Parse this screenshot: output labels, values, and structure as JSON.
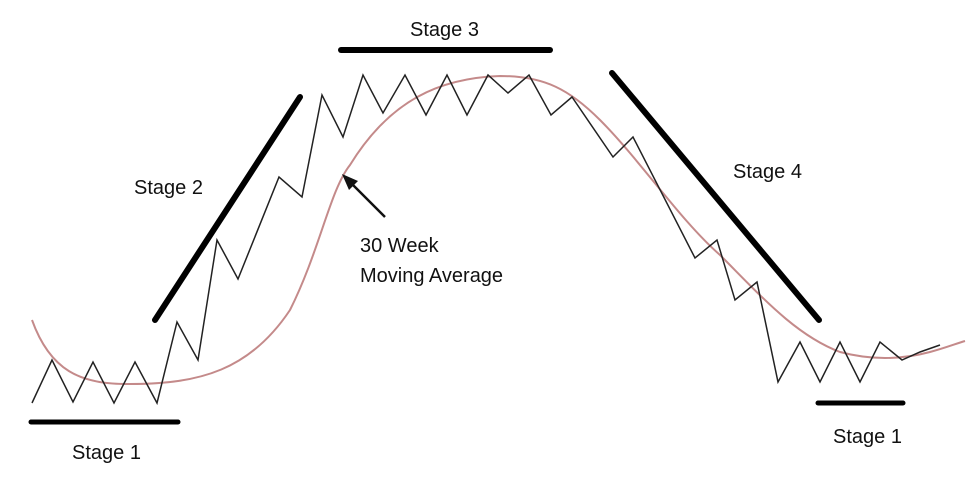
{
  "labels": {
    "stage1_left": "Stage 1",
    "stage2": "Stage 2",
    "stage3": "Stage 3",
    "stage4": "Stage 4",
    "stage1_right": "Stage 1",
    "ma_line1": "30 Week",
    "ma_line2": "Moving Average"
  },
  "colors": {
    "price": "#222222",
    "moving_average": "#c48a8a",
    "trend_bars": "#000000"
  }
}
